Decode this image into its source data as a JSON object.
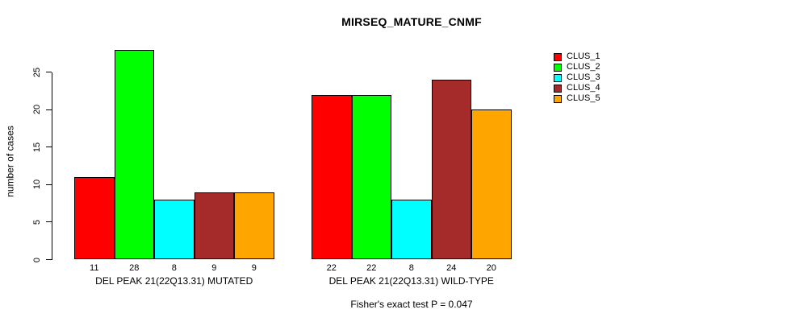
{
  "chart_data": {
    "type": "bar",
    "title": "MIRSEQ_MATURE_CNMF",
    "ylabel": "number of cases",
    "xlabel": "",
    "ylim": [
      0,
      28
    ],
    "yticks": [
      0,
      5,
      10,
      15,
      20,
      25
    ],
    "grid": false,
    "legend_position": "right",
    "series": [
      "CLUS_1",
      "CLUS_2",
      "CLUS_3",
      "CLUS_4",
      "CLUS_5"
    ],
    "colors": [
      "#FF0000",
      "#00FF00",
      "#00FFFF",
      "#A52A2A",
      "#FFA500"
    ],
    "groups": [
      {
        "label": "DEL PEAK 21(22Q13.31) MUTATED",
        "values": [
          11,
          28,
          8,
          9,
          9
        ]
      },
      {
        "label": "DEL PEAK 21(22Q13.31) WILD-TYPE",
        "values": [
          22,
          22,
          8,
          24,
          20
        ]
      }
    ],
    "annotation": "Fisher's exact test P = 0.047"
  }
}
